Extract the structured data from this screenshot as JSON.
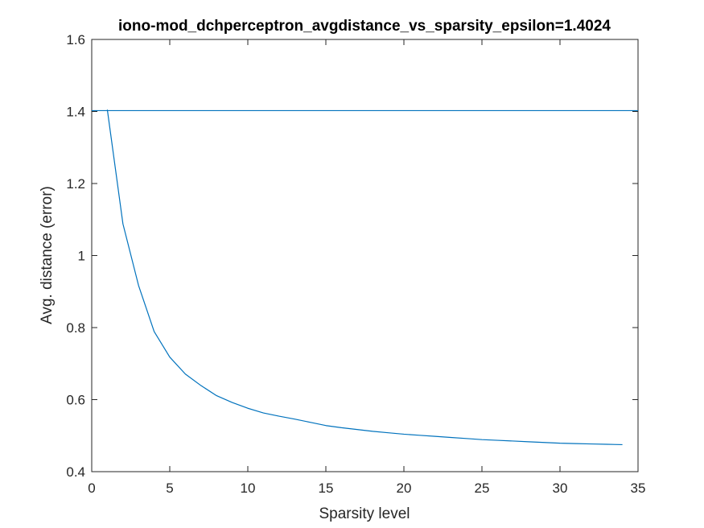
{
  "chart_data": {
    "type": "line",
    "title": "iono-mod_dchperceptron_avgdistance_vs_sparsity_epsilon=1.4024",
    "xlabel": "Sparsity level",
    "ylabel": "Avg. distance (error)",
    "xlim": [
      0,
      35
    ],
    "ylim": [
      0.4,
      1.6
    ],
    "xticks": [
      0,
      5,
      10,
      15,
      20,
      25,
      30,
      35
    ],
    "xtick_labels": [
      "0",
      "5",
      "10",
      "15",
      "20",
      "25",
      "30",
      "35"
    ],
    "yticks": [
      0.4,
      0.6,
      0.8,
      1,
      1.2,
      1.4,
      1.6
    ],
    "ytick_labels": [
      "0.4",
      "0.6",
      "0.8",
      "1",
      "1.2",
      "1.4",
      "1.6"
    ],
    "grid": false,
    "line_color": "#0072bd",
    "series": [
      {
        "x": [
          1,
          2,
          3,
          4,
          5,
          6,
          7,
          8,
          9,
          10,
          11,
          12,
          13,
          14,
          15,
          16,
          17,
          18,
          19,
          20,
          21,
          22,
          23,
          24,
          25,
          26,
          27,
          28,
          29,
          30,
          31,
          32,
          33,
          34
        ],
        "values": [
          1.405,
          1.088,
          0.917,
          0.789,
          0.718,
          0.671,
          0.639,
          0.611,
          0.592,
          0.576,
          0.563,
          0.554,
          0.546,
          0.537,
          0.528,
          0.522,
          0.517,
          0.512,
          0.508,
          0.504,
          0.501,
          0.498,
          0.495,
          0.492,
          0.489,
          0.487,
          0.485,
          0.483,
          0.481,
          0.479,
          0.478,
          0.477,
          0.476,
          0.475
        ]
      },
      {
        "x": [
          0,
          35
        ],
        "values": [
          1.4024,
          1.4024
        ]
      }
    ]
  }
}
